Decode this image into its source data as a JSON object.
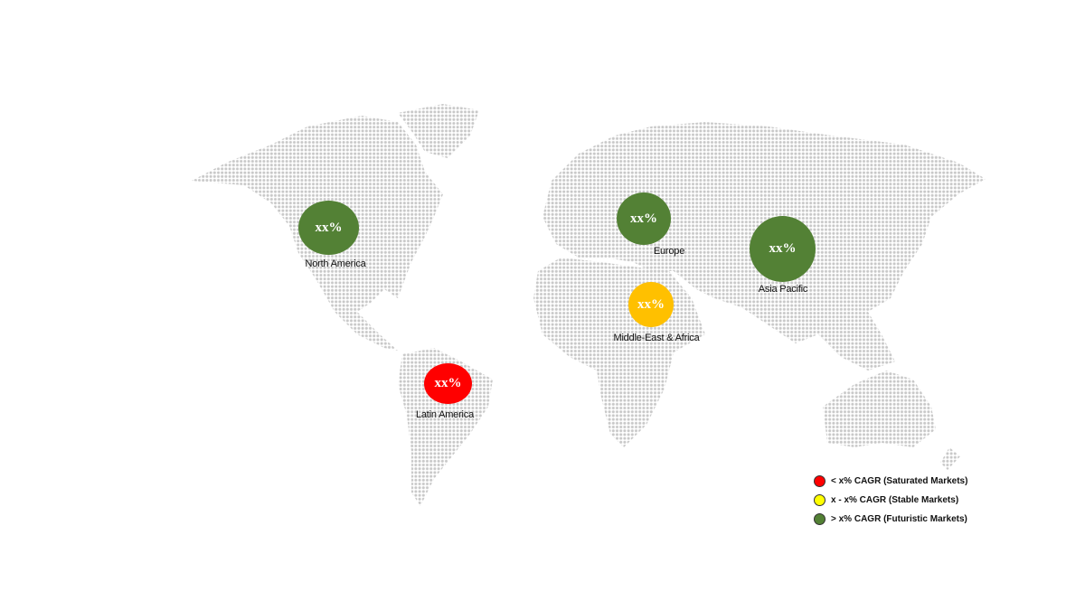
{
  "regions": [
    {
      "name": "North America",
      "value": "xx%",
      "color": "#538135"
    },
    {
      "name": "Europe",
      "value": "xx%",
      "color": "#538135"
    },
    {
      "name": "Asia Pacific",
      "value": "xx%",
      "color": "#538135"
    },
    {
      "name": "Middle-East & Africa",
      "value": "xx%",
      "color": "#FFC000"
    },
    {
      "name": "Latin America",
      "value": "xx%",
      "color": "#FF0000"
    }
  ],
  "legend": [
    {
      "label": "< x% CAGR (Saturated Markets)",
      "color": "#FF0000"
    },
    {
      "label": "x - x% CAGR (Stable Markets)",
      "color": "#FFFF00"
    },
    {
      "label": "> x% CAGR (Futuristic Markets)",
      "color": "#538135"
    }
  ],
  "map_dot_color": "#c8c8c8"
}
